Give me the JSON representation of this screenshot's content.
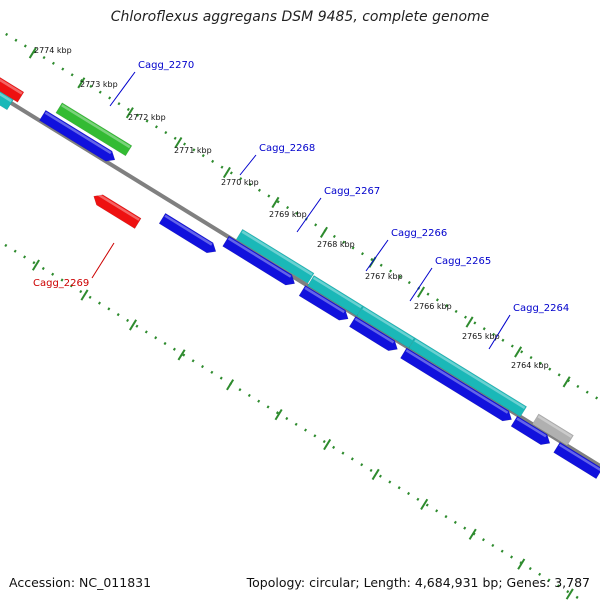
{
  "title": "Chloroflexus aggregans DSM 9485, complete genome",
  "footer": {
    "accession": "Accession: NC_011831",
    "stats": "Topology: circular; Length: 4,684,931 bp; Genes: 3,787"
  },
  "colors": {
    "backbone": "#808080",
    "ruler": "#2e8b2e",
    "cds": "#1111dd",
    "cds_highlight": "#1ab8b8",
    "rrna_green": "#33bb33",
    "red": "#ee1111",
    "grey": "#b0b0b0",
    "label_blue": "#0000cc",
    "label_red": "#cc0000"
  },
  "ruler_labels": [
    "2774 kbp",
    "2773 kbp",
    "2772 kbp",
    "2771 kbp",
    "2770 kbp",
    "2769 kbp",
    "2768 kbp",
    "2767 kbp",
    "2766 kbp",
    "2765 kbp",
    "2764 kbp"
  ],
  "gene_labels": [
    {
      "text": "Cagg_2270",
      "color": "label_blue"
    },
    {
      "text": "Cagg_2268",
      "color": "label_blue"
    },
    {
      "text": "Cagg_2267",
      "color": "label_blue"
    },
    {
      "text": "Cagg_2266",
      "color": "label_blue"
    },
    {
      "text": "Cagg_2265",
      "color": "label_blue"
    },
    {
      "text": "Cagg_2264",
      "color": "label_blue"
    },
    {
      "text": "Cagg_2269",
      "color": "label_red"
    }
  ]
}
